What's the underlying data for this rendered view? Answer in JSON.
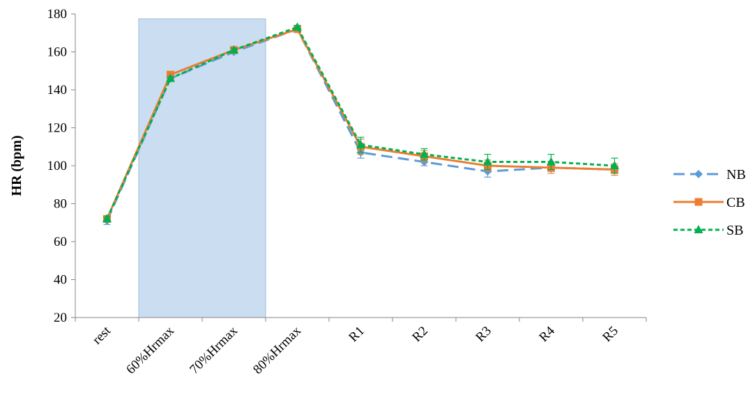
{
  "chart_data": {
    "type": "line",
    "title": "",
    "xlabel": "",
    "ylabel": "HR (bpm)",
    "ylim": [
      20,
      180
    ],
    "yticks": [
      20,
      40,
      60,
      80,
      100,
      120,
      140,
      160,
      180
    ],
    "categories": [
      "rest",
      "60%Hrmax",
      "70%Hrmax",
      "80%Hrmax",
      "R1",
      "R2",
      "R3",
      "R4",
      "R5"
    ],
    "shaded_region": {
      "from": "60%Hrmax",
      "to": "80%Hrmax",
      "color": "#c5d9ee"
    },
    "grid": false,
    "legend_position": "right",
    "series": [
      {
        "name": "NB",
        "color": "#5b9bd5",
        "dash": "long-dash",
        "marker": "diamond",
        "values": [
          71,
          146,
          160,
          172,
          107,
          102,
          97,
          99,
          98
        ],
        "errors": [
          2,
          1,
          1,
          1,
          3,
          2,
          3,
          2,
          2
        ]
      },
      {
        "name": "CB",
        "color": "#ed7d31",
        "dash": "solid",
        "marker": "square",
        "values": [
          72,
          148,
          161,
          172,
          110,
          105,
          100,
          99,
          98
        ],
        "errors": [
          1,
          1,
          1,
          1,
          4,
          3,
          3,
          3,
          3
        ]
      },
      {
        "name": "SB",
        "color": "#00b050",
        "dash": "dotted",
        "marker": "triangle",
        "values": [
          72,
          146,
          161,
          173,
          111,
          106,
          102,
          102,
          100
        ],
        "errors": [
          1,
          1,
          1,
          1,
          4,
          3,
          4,
          4,
          4
        ]
      }
    ]
  }
}
